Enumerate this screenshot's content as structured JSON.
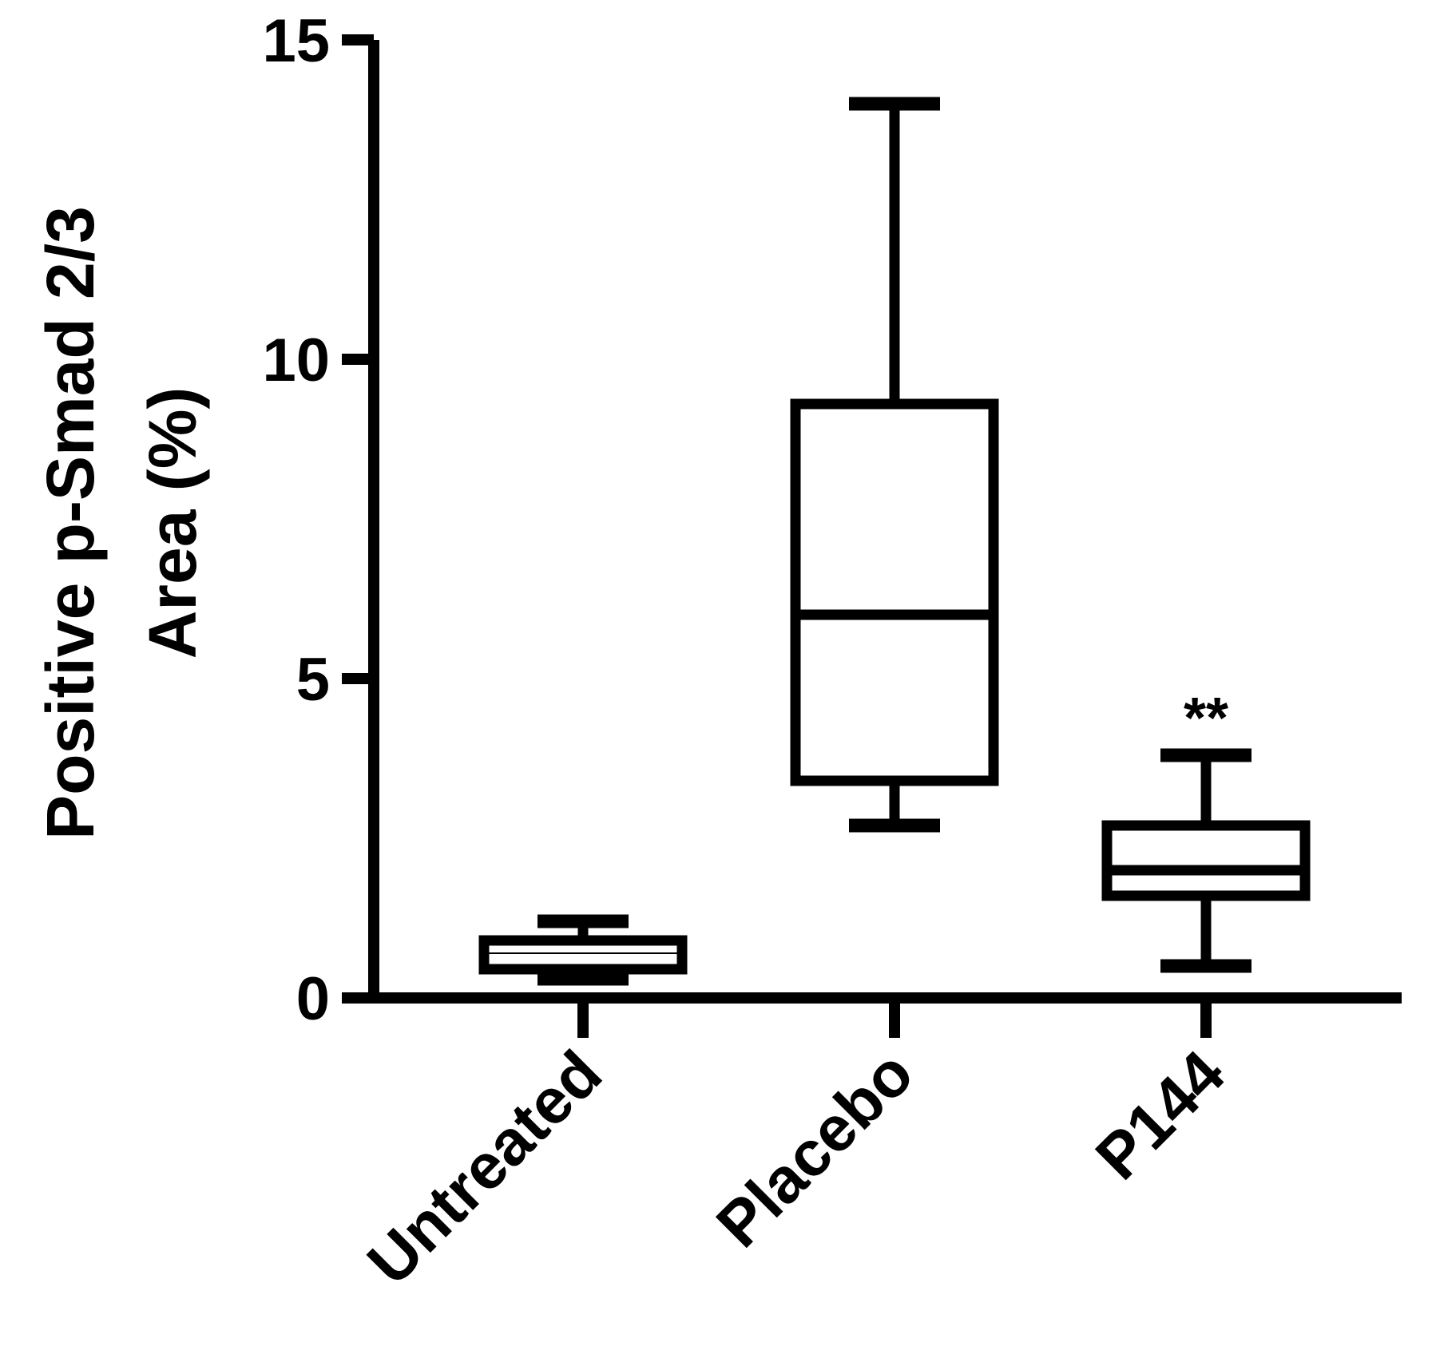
{
  "chart_data": {
    "type": "box",
    "title": "",
    "ylabel_lines": [
      "Positive p-Smad 2/3",
      "Area (%)"
    ],
    "xlabel": "",
    "ylim": [
      0,
      15
    ],
    "yticks": [
      0,
      5,
      10,
      15
    ],
    "categories": [
      "Untreated",
      "Placebo",
      "P144"
    ],
    "boxes": [
      {
        "category": "Untreated",
        "min": 0.3,
        "q1": 0.45,
        "median": 0.7,
        "q3": 0.9,
        "max": 1.2,
        "annotation": ""
      },
      {
        "category": "Placebo",
        "min": 2.7,
        "q1": 3.4,
        "median": 6.0,
        "q3": 9.3,
        "max": 14.0,
        "annotation": ""
      },
      {
        "category": "P144",
        "min": 0.5,
        "q1": 1.6,
        "median": 2.0,
        "q3": 2.7,
        "max": 3.8,
        "annotation": "**"
      }
    ],
    "grid": false,
    "color": "#000000"
  }
}
